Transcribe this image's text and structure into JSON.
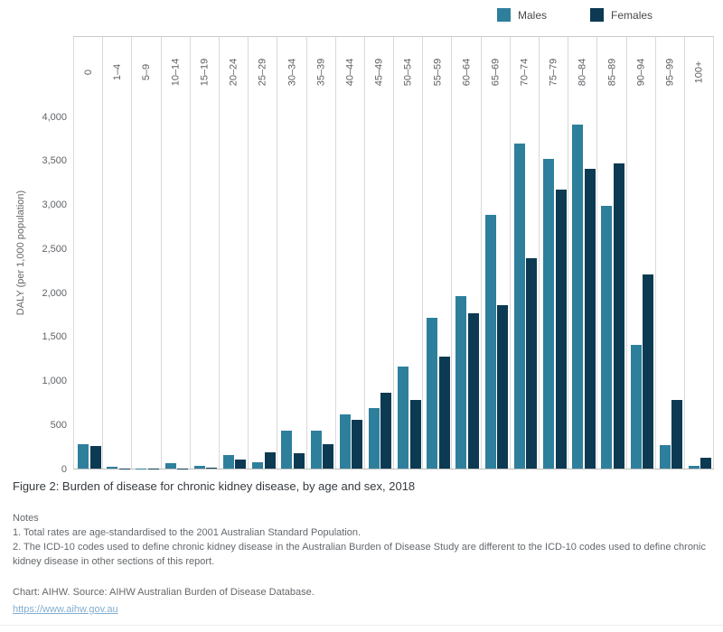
{
  "legend": {
    "items": [
      {
        "label": "Males"
      },
      {
        "label": "Females"
      }
    ]
  },
  "y_axis": {
    "title": "DALY (per 1,000 population)",
    "ticks": [
      {
        "label": "0",
        "value": 0
      },
      {
        "label": "500",
        "value": 500
      },
      {
        "label": "1,000",
        "value": 1000
      },
      {
        "label": "1,500",
        "value": 1500
      },
      {
        "label": "2,000",
        "value": 2000
      },
      {
        "label": "2,500",
        "value": 2500
      },
      {
        "label": "3,000",
        "value": 3000
      },
      {
        "label": "3,500",
        "value": 3500
      },
      {
        "label": "4,000",
        "value": 4000
      }
    ]
  },
  "chart_data": {
    "type": "bar",
    "title": "Figure 2: Burden of disease for chronic kidney disease, by age and sex, 2018",
    "xlabel": "",
    "ylabel": "DALY (per 1,000 population)",
    "ylim": [
      0,
      4000
    ],
    "y_tick_step": 500,
    "legend_position": "top-right",
    "grid": "vertical column separators only",
    "categories": [
      "0",
      "1–4",
      "5–9",
      "10–14",
      "15–19",
      "20–24",
      "25–29",
      "30–34",
      "35–39",
      "40–44",
      "45–49",
      "50–54",
      "55–59",
      "60–64",
      "65–69",
      "70–74",
      "75–79",
      "80–84",
      "85–89",
      "90–94",
      "95–99",
      "100+"
    ],
    "series": [
      {
        "name": "Males",
        "color": "#2E7F9C",
        "values": [
          280,
          25,
          2,
          60,
          35,
          150,
          75,
          430,
          430,
          620,
          690,
          1160,
          1710,
          1960,
          2880,
          3690,
          3520,
          3910,
          2980,
          1410,
          270,
          35
        ]
      },
      {
        "name": "Females",
        "color": "#0C3A52",
        "values": [
          255,
          5,
          1,
          5,
          15,
          105,
          185,
          170,
          280,
          555,
          860,
          780,
          1270,
          1760,
          1860,
          2395,
          3165,
          3410,
          3470,
          2210,
          775,
          120
        ]
      }
    ]
  },
  "caption": {
    "title": "Figure 2: Burden of disease for chronic kidney disease, by age and sex, 2018",
    "notes_heading": "Notes",
    "notes": [
      "1. Total rates are age-standardised to the 2001 Australian Standard Population.",
      "2. The ICD-10 codes used to define chronic kidney disease in the Australian Burden of Disease Study are different to the ICD-10 codes used to define chronic kidney disease in other sections of this report."
    ],
    "source": "Chart: AIHW. Source: AIHW Australian Burden of Disease Database.",
    "link": "https://www.aihw.gov.au"
  }
}
